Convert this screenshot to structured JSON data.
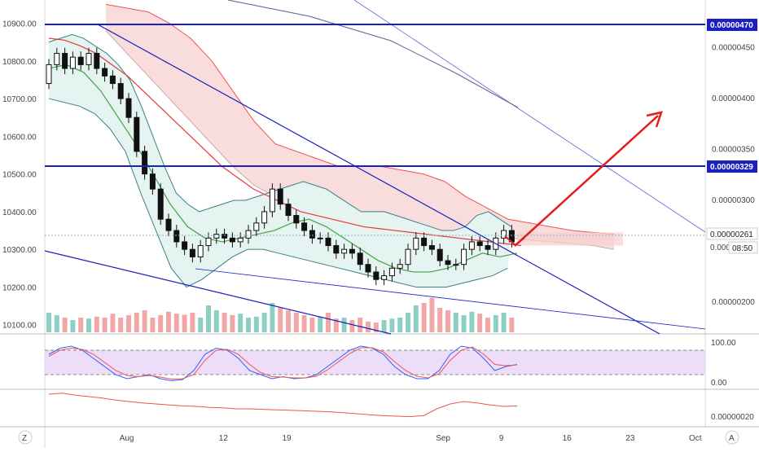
{
  "colors": {
    "up": "#ffffff",
    "down": "#111111",
    "outline": "#111111",
    "bb_fill": "#e6f4f1",
    "bb_line": "#3a7f86",
    "ma_red": "#e53935",
    "ma_green": "#43a047",
    "cloud_fill": "#f7cfcf",
    "cloud_line": "#ef5350",
    "trend_blue": "#1a1fbf",
    "level_blue": "#1a1fbf",
    "arrow": "#e51a1a",
    "vol_up": "#8ecfc4",
    "vol_down": "#f2a7a7",
    "stoch_band": "#e3c6f5",
    "stoch_k": "#2962ff",
    "stoch_d": "#ef5350",
    "osc": "#ef5350"
  },
  "left_axis": {
    "labels": [
      "10900.00",
      "10800.00",
      "10700.00",
      "10600.00",
      "10500.00",
      "10400.00",
      "10300.00",
      "10200.00",
      "10100.00"
    ],
    "values": [
      10900,
      10800,
      10700,
      10600,
      10500,
      10400,
      10300,
      10200,
      10100
    ]
  },
  "right_axis": {
    "labels": [
      "0.00000450",
      "0.00000400",
      "0.00000350",
      "0.00000300",
      "0.00000200"
    ],
    "values": [
      4.5e-06,
      4e-06,
      3.5e-06,
      3e-06,
      2e-06
    ]
  },
  "right_tags": {
    "level_top": "0.00000470",
    "level_mid": "0.00000329",
    "current": "0.00000261",
    "partial": "0.000",
    "countdown": "08:50"
  },
  "stoch_axis": {
    "top": "100.00",
    "bottom": "0.00"
  },
  "osc_axis": {
    "value": "0.00000020"
  },
  "time_axis": {
    "labels": [
      "Aug",
      "12",
      "19",
      "Sep",
      "9",
      "16",
      "23",
      "Oct"
    ],
    "values": [
      7,
      18,
      25,
      42,
      49,
      56,
      63,
      70
    ]
  },
  "corner": {
    "left": "Z",
    "right": "A"
  },
  "chart_data": {
    "type": "candlestick",
    "x": [
      0,
      1,
      2,
      3,
      4,
      5,
      6,
      7,
      8,
      9,
      10,
      11,
      12,
      13,
      14,
      15,
      16,
      17,
      18,
      19,
      20,
      21,
      22,
      23,
      24,
      25,
      26,
      27,
      28,
      29,
      30,
      31,
      32,
      33,
      34,
      35,
      36,
      37,
      38,
      39,
      40,
      41,
      42,
      43,
      44,
      45,
      46,
      47,
      48,
      49,
      50,
      51,
      52,
      53,
      54,
      55,
      56,
      57,
      58
    ],
    "open": [
      10740,
      10790,
      10820,
      10780,
      10810,
      10790,
      10820,
      10780,
      10760,
      10740,
      10700,
      10650,
      10560,
      10500,
      10460,
      10380,
      10350,
      10320,
      10300,
      10280,
      10310,
      10330,
      10340,
      10330,
      10320,
      10330,
      10350,
      10370,
      10400,
      10460,
      10420,
      10390,
      10370,
      10350,
      10330,
      10330,
      10310,
      10290,
      10300,
      10290,
      10260,
      10240,
      10220,
      10230,
      10250,
      10260,
      10300,
      10330,
      10310,
      10300,
      10270,
      10260,
      10260,
      10300,
      10320,
      10310,
      10300,
      10330,
      10350
    ],
    "close": [
      10790,
      10820,
      10780,
      10810,
      10790,
      10820,
      10780,
      10760,
      10740,
      10700,
      10650,
      10560,
      10500,
      10460,
      10380,
      10350,
      10320,
      10300,
      10280,
      10310,
      10330,
      10340,
      10330,
      10320,
      10330,
      10350,
      10370,
      10400,
      10460,
      10420,
      10390,
      10370,
      10350,
      10330,
      10330,
      10310,
      10290,
      10300,
      10290,
      10260,
      10240,
      10220,
      10230,
      10250,
      10260,
      10300,
      10330,
      10310,
      10300,
      10270,
      10260,
      10260,
      10300,
      10320,
      10310,
      10300,
      10330,
      10350,
      10320
    ],
    "volume": [
      40,
      35,
      30,
      25,
      30,
      28,
      32,
      30,
      38,
      30,
      35,
      40,
      45,
      30,
      35,
      42,
      38,
      36,
      40,
      30,
      55,
      45,
      40,
      35,
      38,
      30,
      32,
      40,
      60,
      50,
      45,
      40,
      35,
      30,
      32,
      40,
      28,
      30,
      25,
      30,
      22,
      20,
      25,
      28,
      30,
      40,
      55,
      60,
      70,
      50,
      45,
      40,
      35,
      42,
      38,
      30,
      35,
      40,
      30
    ],
    "upper_band": [
      10850,
      10860,
      10870,
      10860,
      10840,
      10820,
      10790,
      10750,
      10680,
      10600,
      10520,
      10450,
      10420,
      10400,
      10410,
      10420,
      10430,
      10430,
      10440,
      10450,
      10460,
      10470,
      10480,
      10470,
      10460,
      10440,
      10420,
      10400,
      10400,
      10400,
      10390,
      10380,
      10370,
      10360,
      10350,
      10350,
      10360,
      10390,
      10400,
      10380,
      10360
    ],
    "lower_band": [
      10700,
      10690,
      10680,
      10660,
      10620,
      10560,
      10450,
      10350,
      10250,
      10200,
      10220,
      10250,
      10280,
      10300,
      10300,
      10290,
      10280,
      10270,
      10260,
      10250,
      10240,
      10230,
      10220,
      10210,
      10200,
      10200,
      10200,
      10210,
      10220,
      10230,
      10250
    ],
    "ma_red": [
      10860,
      10855,
      10840,
      10820,
      10790,
      10760,
      10720,
      10680,
      10640,
      10600,
      10560,
      10520,
      10490,
      10460,
      10440,
      10420,
      10400,
      10390,
      10380,
      10370,
      10360,
      10355,
      10350,
      10345,
      10340,
      10335,
      10330,
      10325,
      10320,
      10315,
      10310
    ],
    "ma_green": [
      10780,
      10790,
      10770,
      10720,
      10650,
      10580,
      10500,
      10420,
      10360,
      10330,
      10320,
      10330,
      10340,
      10350,
      10370,
      10380,
      10360,
      10330,
      10300,
      10270,
      10250,
      10240,
      10240,
      10250,
      10270,
      10290,
      10280,
      10290
    ],
    "stoch_k": [
      70,
      85,
      90,
      80,
      60,
      40,
      20,
      10,
      15,
      20,
      10,
      5,
      8,
      30,
      70,
      85,
      80,
      60,
      30,
      20,
      10,
      15,
      10,
      12,
      20,
      40,
      60,
      80,
      90,
      85,
      70,
      40,
      20,
      10,
      10,
      30,
      70,
      90,
      85,
      60,
      30,
      40,
      45
    ],
    "stoch_d": [
      65,
      80,
      85,
      82,
      70,
      50,
      30,
      18,
      15,
      18,
      14,
      9,
      10,
      20,
      55,
      80,
      82,
      70,
      45,
      25,
      15,
      14,
      12,
      12,
      16,
      32,
      52,
      72,
      86,
      86,
      76,
      52,
      30,
      16,
      12,
      22,
      55,
      80,
      88,
      70,
      45,
      42,
      44
    ],
    "osc": [
      60,
      62,
      58,
      55,
      52,
      48,
      45,
      42,
      40,
      38,
      36,
      35,
      33,
      32,
      30,
      30,
      29,
      28,
      27,
      26,
      25,
      24,
      22,
      20,
      18,
      16,
      15,
      14,
      16,
      30,
      40,
      45,
      42,
      38,
      35,
      36
    ]
  }
}
